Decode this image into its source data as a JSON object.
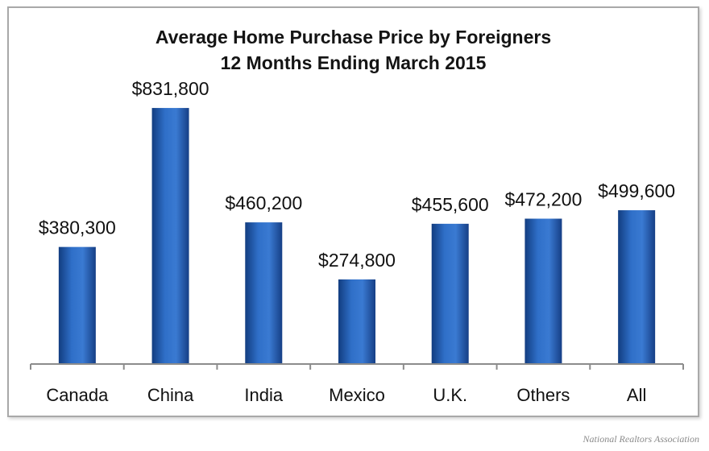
{
  "chart_data": {
    "type": "bar",
    "title": "Average Home Purchase Price by Foreigners",
    "subtitle": "12 Months Ending March 2015",
    "categories": [
      "Canada",
      "China",
      "India",
      "Mexico",
      "U.K.",
      "Others",
      "All"
    ],
    "values": [
      380300,
      831800,
      460200,
      274800,
      455600,
      472200,
      499600
    ],
    "data_labels": [
      "$380,300",
      "$831,800",
      "$460,200",
      "$274,800",
      "$455,600",
      "$472,200",
      "$499,600"
    ],
    "xlabel": "",
    "ylabel": "",
    "ylim": [
      0,
      900000
    ],
    "grid": false,
    "legend": "none",
    "bar_color": "#2a63b8"
  },
  "source_credit": "National Realtors Association"
}
